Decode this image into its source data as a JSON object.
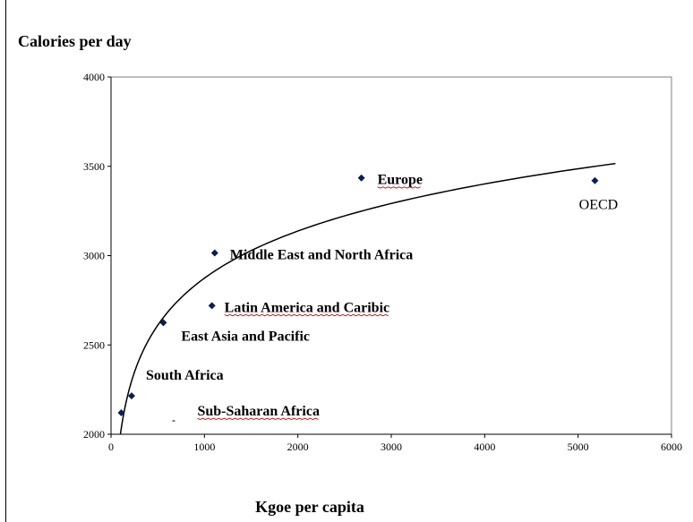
{
  "chart_data": {
    "type": "scatter",
    "title": "",
    "ylabel": "Calories per day",
    "xlabel": "Kgoe per capita",
    "xlim": [
      0,
      6000
    ],
    "ylim": [
      2000,
      4000
    ],
    "x_ticks": [
      0,
      1000,
      2000,
      3000,
      4000,
      5000,
      6000
    ],
    "y_ticks": [
      2000,
      2500,
      3000,
      3500,
      4000
    ],
    "grid": false,
    "legend": "none",
    "marker": "diamond",
    "point_color": "#0b1f4f",
    "trendline": {
      "type": "logarithmic",
      "color": "#000000"
    },
    "points": [
      {
        "label": "Sub-Saharan Africa",
        "x": 110,
        "y": 2120
      },
      {
        "label": "South Africa",
        "x": 220,
        "y": 2215
      },
      {
        "label": "East Asia and Pacific",
        "x": 560,
        "y": 2625
      },
      {
        "label": "Latin America and Caribic",
        "x": 1080,
        "y": 2720
      },
      {
        "label": "Middle East and North Africa",
        "x": 1110,
        "y": 3015
      },
      {
        "label": "Europe",
        "x": 2680,
        "y": 3435
      },
      {
        "label": "OECD",
        "x": 5180,
        "y": 3420
      }
    ]
  }
}
